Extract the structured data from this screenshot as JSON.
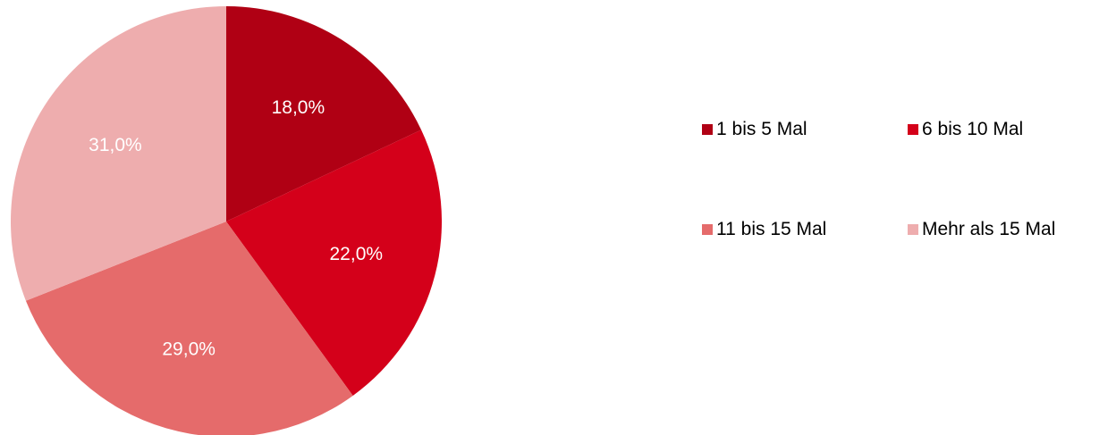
{
  "chart_data": {
    "type": "pie",
    "title": "",
    "slices": [
      {
        "label": "1 bis 5 Mal",
        "value": 18.0,
        "display": "18,0%",
        "color": "#b00014"
      },
      {
        "label": "6 bis 10 Mal",
        "value": 22.0,
        "display": "22,0%",
        "color": "#d4001a"
      },
      {
        "label": "11 bis 15 Mal",
        "value": 29.0,
        "display": "29,0%",
        "color": "#e56b6b"
      },
      {
        "label": "Mehr als 15 Mal",
        "value": 31.0,
        "display": "31,0%",
        "color": "#eeadae"
      }
    ],
    "legend_position": "right"
  }
}
